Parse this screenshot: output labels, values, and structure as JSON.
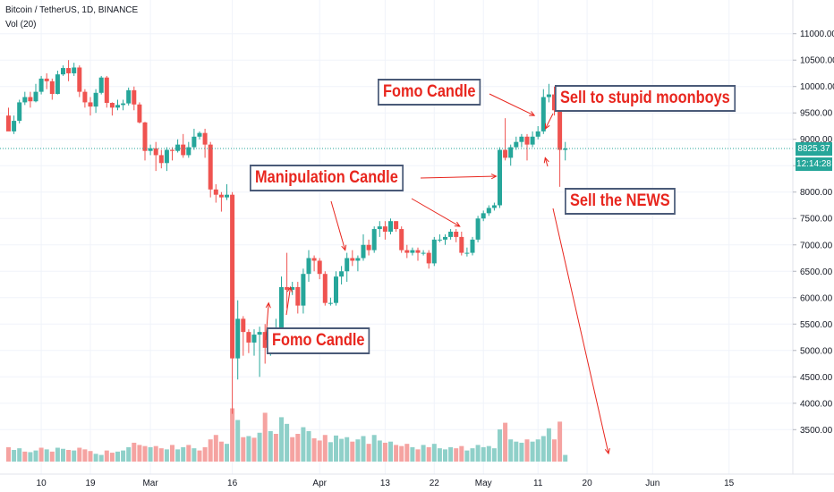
{
  "header": {
    "symbol_line": "Bitcoin / TetherUS, 1D, BINANCE",
    "volume_line": "Vol (20)"
  },
  "price_tag": {
    "value": "8825.37",
    "color": "#26a69a"
  },
  "time_tag": {
    "value": "12:14:28",
    "color": "#26a69a"
  },
  "annotations": {
    "fomo_top": "Fomo Candle",
    "sell_moonboys": "Sell to stupid moonboys",
    "manipulation": "Manipulation Candle",
    "sell_news": "Sell the NEWS",
    "fomo_bottom": "Fomo Candle"
  },
  "colors": {
    "up": "#26a69a",
    "down": "#ef5350",
    "vol_up": "#8fd0c9",
    "vol_down": "#f5a3a1",
    "annotation": "#e8261e",
    "arrow": "#e8261e"
  },
  "chart_data": {
    "type": "candlestick",
    "title": "",
    "xlabel": "",
    "ylabel": "",
    "ylim": [
      3200,
      11300
    ],
    "y_tick_labels": [
      "11000.00",
      "10500.00",
      "10000.00",
      "9500.00",
      "9000.00",
      "8500.00",
      "8000.00",
      "7500.00",
      "7000.00",
      "6500.00",
      "6000.00",
      "5500.00",
      "5000.00",
      "4500.00",
      "4000.00",
      "3500.00"
    ],
    "y_ticks": [
      11000,
      10500,
      10000,
      9500,
      9000,
      8500,
      8000,
      7500,
      7000,
      6500,
      6000,
      5500,
      5000,
      4500,
      4000,
      3500
    ],
    "x_tick_labels": [
      "10",
      "19",
      "Mar",
      "16",
      "Apr",
      "13",
      "22",
      "May",
      "11",
      "20",
      "Jun",
      "15"
    ],
    "x_tick_dates": [
      "2020-02-10",
      "2020-02-19",
      "2020-03-01",
      "2020-03-16",
      "2020-04-01",
      "2020-04-13",
      "2020-04-22",
      "2020-05-01",
      "2020-05-11",
      "2020-05-20",
      "2020-06-01",
      "2020-06-15"
    ],
    "current_price": 8825.37,
    "series_dates": [
      "2020-02-04",
      "2020-05-11"
    ],
    "candles": [
      [
        9450,
        9150,
        9600,
        9200
      ],
      [
        9150,
        9350,
        9450,
        9100
      ],
      [
        9350,
        9700,
        9750,
        9300
      ],
      [
        9700,
        9800,
        9900,
        9650
      ],
      [
        9800,
        9720,
        9900,
        9600
      ],
      [
        9720,
        9900,
        10050,
        9700
      ],
      [
        9900,
        10150,
        10200,
        9850
      ],
      [
        10150,
        10100,
        10250,
        9950
      ],
      [
        10100,
        9860,
        10150,
        9750
      ],
      [
        9860,
        10230,
        10300,
        9850
      ],
      [
        10230,
        10350,
        10400,
        10200
      ],
      [
        10350,
        10250,
        10500,
        10100
      ],
      [
        10250,
        10360,
        10450,
        10200
      ],
      [
        10360,
        9900,
        10400,
        9800
      ],
      [
        9900,
        9700,
        9950,
        9600
      ],
      [
        9700,
        9620,
        9800,
        9450
      ],
      [
        9620,
        9880,
        9950,
        9500
      ],
      [
        9880,
        10170,
        10200,
        9850
      ],
      [
        10170,
        9690,
        10200,
        9600
      ],
      [
        9690,
        9600,
        9700,
        9450
      ],
      [
        9600,
        9650,
        9750,
        9550
      ],
      [
        9650,
        9680,
        9750,
        9550
      ],
      [
        9680,
        9930,
        9980,
        9640
      ],
      [
        9930,
        9660,
        10000,
        9550
      ],
      [
        9660,
        9320,
        9700,
        9300
      ],
      [
        9320,
        8780,
        9330,
        8600
      ],
      [
        8780,
        8830,
        8900,
        8700
      ],
      [
        8830,
        8700,
        8950,
        8400
      ],
      [
        8700,
        8550,
        8800,
        8450
      ],
      [
        8550,
        8800,
        8850,
        8400
      ],
      [
        8800,
        8780,
        8850,
        8600
      ],
      [
        8780,
        8900,
        9000,
        8750
      ],
      [
        8900,
        8700,
        9100,
        8650
      ],
      [
        8700,
        8850,
        8950,
        8650
      ],
      [
        8850,
        9050,
        9200,
        8800
      ],
      [
        9050,
        9120,
        9150,
        9000
      ],
      [
        9120,
        8900,
        9200,
        8650
      ],
      [
        8900,
        8050,
        8950,
        7900
      ],
      [
        8050,
        7950,
        8150,
        7800
      ],
      [
        7950,
        7900,
        8000,
        7630
      ],
      [
        7900,
        7950,
        8150,
        7850
      ],
      [
        7950,
        4850,
        8000,
        3800
      ],
      [
        4850,
        5600,
        5950,
        4450
      ],
      [
        5600,
        5350,
        5650,
        4900
      ],
      [
        5350,
        5150,
        5400,
        4950
      ],
      [
        5150,
        5300,
        5400,
        4900
      ],
      [
        5300,
        5350,
        5450,
        4500
      ],
      [
        5350,
        5050,
        5500,
        4750
      ],
      [
        5050,
        5350,
        5400,
        4900
      ],
      [
        5350,
        5400,
        5600,
        5200
      ],
      [
        5400,
        6200,
        6400,
        5350
      ],
      [
        6200,
        6150,
        6850,
        5800
      ],
      [
        6150,
        6200,
        6300,
        6050
      ],
      [
        6200,
        5850,
        6300,
        5700
      ],
      [
        5850,
        6450,
        6550,
        5700
      ],
      [
        6450,
        6750,
        6900,
        6300
      ],
      [
        6750,
        6700,
        6800,
        6500
      ],
      [
        6700,
        6450,
        6750,
        6350
      ],
      [
        6450,
        5900,
        6500,
        5850
      ],
      [
        5900,
        5900,
        6000,
        5850
      ],
      [
        5900,
        6400,
        6500,
        5850
      ],
      [
        6400,
        6500,
        6600,
        6250
      ],
      [
        6500,
        6750,
        6850,
        6300
      ],
      [
        6750,
        6700,
        6900,
        6600
      ],
      [
        6700,
        6750,
        6800,
        6500
      ],
      [
        6750,
        7000,
        7200,
        6700
      ],
      [
        7000,
        6900,
        7100,
        6800
      ],
      [
        6900,
        7300,
        7350,
        6850
      ],
      [
        7300,
        7350,
        7450,
        7150
      ],
      [
        7350,
        7250,
        7450,
        7100
      ],
      [
        7250,
        7450,
        7500,
        7200
      ],
      [
        7450,
        7300,
        7450,
        7250
      ],
      [
        7300,
        6900,
        7350,
        6850
      ],
      [
        6900,
        6850,
        7000,
        6750
      ],
      [
        6850,
        6900,
        6950,
        6800
      ],
      [
        6900,
        6850,
        6950,
        6700
      ],
      [
        6850,
        6850,
        6900,
        6800
      ],
      [
        6850,
        6650,
        6900,
        6550
      ],
      [
        6650,
        7100,
        7150,
        6600
      ],
      [
        7100,
        7100,
        7200,
        7050
      ],
      [
        7100,
        7150,
        7200,
        7000
      ],
      [
        7150,
        7250,
        7300,
        7100
      ],
      [
        7250,
        7150,
        7300,
        7050
      ],
      [
        7150,
        6850,
        7250,
        6800
      ],
      [
        6850,
        6850,
        6950,
        6780
      ],
      [
        6850,
        7100,
        7150,
        6800
      ],
      [
        7100,
        7500,
        7550,
        7050
      ],
      [
        7500,
        7600,
        7650,
        7450
      ],
      [
        7600,
        7700,
        7750,
        7550
      ],
      [
        7700,
        7750,
        7800,
        7650
      ],
      [
        7750,
        8800,
        8850,
        7700
      ],
      [
        8800,
        8650,
        9400,
        8600
      ],
      [
        8650,
        8850,
        8900,
        8500
      ],
      [
        8850,
        8950,
        9050,
        8800
      ],
      [
        8950,
        9050,
        9100,
        8850
      ],
      [
        9050,
        8900,
        9100,
        8600
      ],
      [
        8900,
        9050,
        9150,
        8850
      ],
      [
        9050,
        9150,
        9250,
        9000
      ],
      [
        9150,
        9800,
        9950,
        9100
      ],
      [
        9800,
        9850,
        10050,
        9700
      ],
      [
        9850,
        9550,
        10000,
        9450
      ],
      [
        9550,
        8800,
        9600,
        8100
      ],
      [
        8800,
        8825,
        8950,
        8600
      ]
    ],
    "volume": [
      {
        "up": false,
        "v": 26
      },
      {
        "up": true,
        "v": 21
      },
      {
        "up": true,
        "v": 24
      },
      {
        "up": false,
        "v": 18
      },
      {
        "up": true,
        "v": 17
      },
      {
        "up": true,
        "v": 20
      },
      {
        "up": false,
        "v": 25
      },
      {
        "up": true,
        "v": 22
      },
      {
        "up": false,
        "v": 18
      },
      {
        "up": true,
        "v": 25
      },
      {
        "up": true,
        "v": 23
      },
      {
        "up": false,
        "v": 21
      },
      {
        "up": true,
        "v": 20
      },
      {
        "up": false,
        "v": 25
      },
      {
        "up": false,
        "v": 22
      },
      {
        "up": false,
        "v": 19
      },
      {
        "up": true,
        "v": 14
      },
      {
        "up": true,
        "v": 12
      },
      {
        "up": false,
        "v": 20
      },
      {
        "up": false,
        "v": 16
      },
      {
        "up": true,
        "v": 18
      },
      {
        "up": true,
        "v": 20
      },
      {
        "up": true,
        "v": 26
      },
      {
        "up": false,
        "v": 34
      },
      {
        "up": false,
        "v": 30
      },
      {
        "up": false,
        "v": 28
      },
      {
        "up": true,
        "v": 26
      },
      {
        "up": false,
        "v": 28
      },
      {
        "up": false,
        "v": 24
      },
      {
        "up": true,
        "v": 22
      },
      {
        "up": false,
        "v": 30
      },
      {
        "up": true,
        "v": 22
      },
      {
        "up": true,
        "v": 26
      },
      {
        "up": false,
        "v": 30
      },
      {
        "up": true,
        "v": 24
      },
      {
        "up": false,
        "v": 20
      },
      {
        "up": false,
        "v": 26
      },
      {
        "up": false,
        "v": 40
      },
      {
        "up": false,
        "v": 48
      },
      {
        "up": false,
        "v": 36
      },
      {
        "up": true,
        "v": 32
      },
      {
        "up": false,
        "v": 96
      },
      {
        "up": true,
        "v": 75
      },
      {
        "up": false,
        "v": 44
      },
      {
        "up": true,
        "v": 46
      },
      {
        "up": false,
        "v": 43
      },
      {
        "up": true,
        "v": 52
      },
      {
        "up": false,
        "v": 88
      },
      {
        "up": true,
        "v": 55
      },
      {
        "up": false,
        "v": 50
      },
      {
        "up": true,
        "v": 80
      },
      {
        "up": true,
        "v": 68
      },
      {
        "up": false,
        "v": 44
      },
      {
        "up": false,
        "v": 50
      },
      {
        "up": true,
        "v": 62
      },
      {
        "up": true,
        "v": 55
      },
      {
        "up": false,
        "v": 42
      },
      {
        "up": false,
        "v": 38
      },
      {
        "up": false,
        "v": 48
      },
      {
        "up": true,
        "v": 35
      },
      {
        "up": true,
        "v": 47
      },
      {
        "up": true,
        "v": 41
      },
      {
        "up": true,
        "v": 44
      },
      {
        "up": false,
        "v": 36
      },
      {
        "up": true,
        "v": 40
      },
      {
        "up": true,
        "v": 46
      },
      {
        "up": false,
        "v": 32
      },
      {
        "up": true,
        "v": 48
      },
      {
        "up": true,
        "v": 38
      },
      {
        "up": false,
        "v": 34
      },
      {
        "up": true,
        "v": 36
      },
      {
        "up": false,
        "v": 30
      },
      {
        "up": false,
        "v": 28
      },
      {
        "up": false,
        "v": 32
      },
      {
        "up": true,
        "v": 26
      },
      {
        "up": false,
        "v": 22
      },
      {
        "up": true,
        "v": 30
      },
      {
        "up": false,
        "v": 26
      },
      {
        "up": true,
        "v": 32
      },
      {
        "up": true,
        "v": 24
      },
      {
        "up": true,
        "v": 22
      },
      {
        "up": true,
        "v": 26
      },
      {
        "up": false,
        "v": 24
      },
      {
        "up": false,
        "v": 28
      },
      {
        "up": true,
        "v": 20
      },
      {
        "up": true,
        "v": 24
      },
      {
        "up": true,
        "v": 30
      },
      {
        "up": true,
        "v": 26
      },
      {
        "up": true,
        "v": 28
      },
      {
        "up": true,
        "v": 24
      },
      {
        "up": true,
        "v": 58
      },
      {
        "up": false,
        "v": 70
      },
      {
        "up": true,
        "v": 40
      },
      {
        "up": true,
        "v": 36
      },
      {
        "up": true,
        "v": 34
      },
      {
        "up": false,
        "v": 40
      },
      {
        "up": true,
        "v": 36
      },
      {
        "up": true,
        "v": 40
      },
      {
        "up": true,
        "v": 46
      },
      {
        "up": true,
        "v": 60
      },
      {
        "up": false,
        "v": 40
      },
      {
        "up": false,
        "v": 72
      },
      {
        "up": true,
        "v": 12
      }
    ]
  }
}
